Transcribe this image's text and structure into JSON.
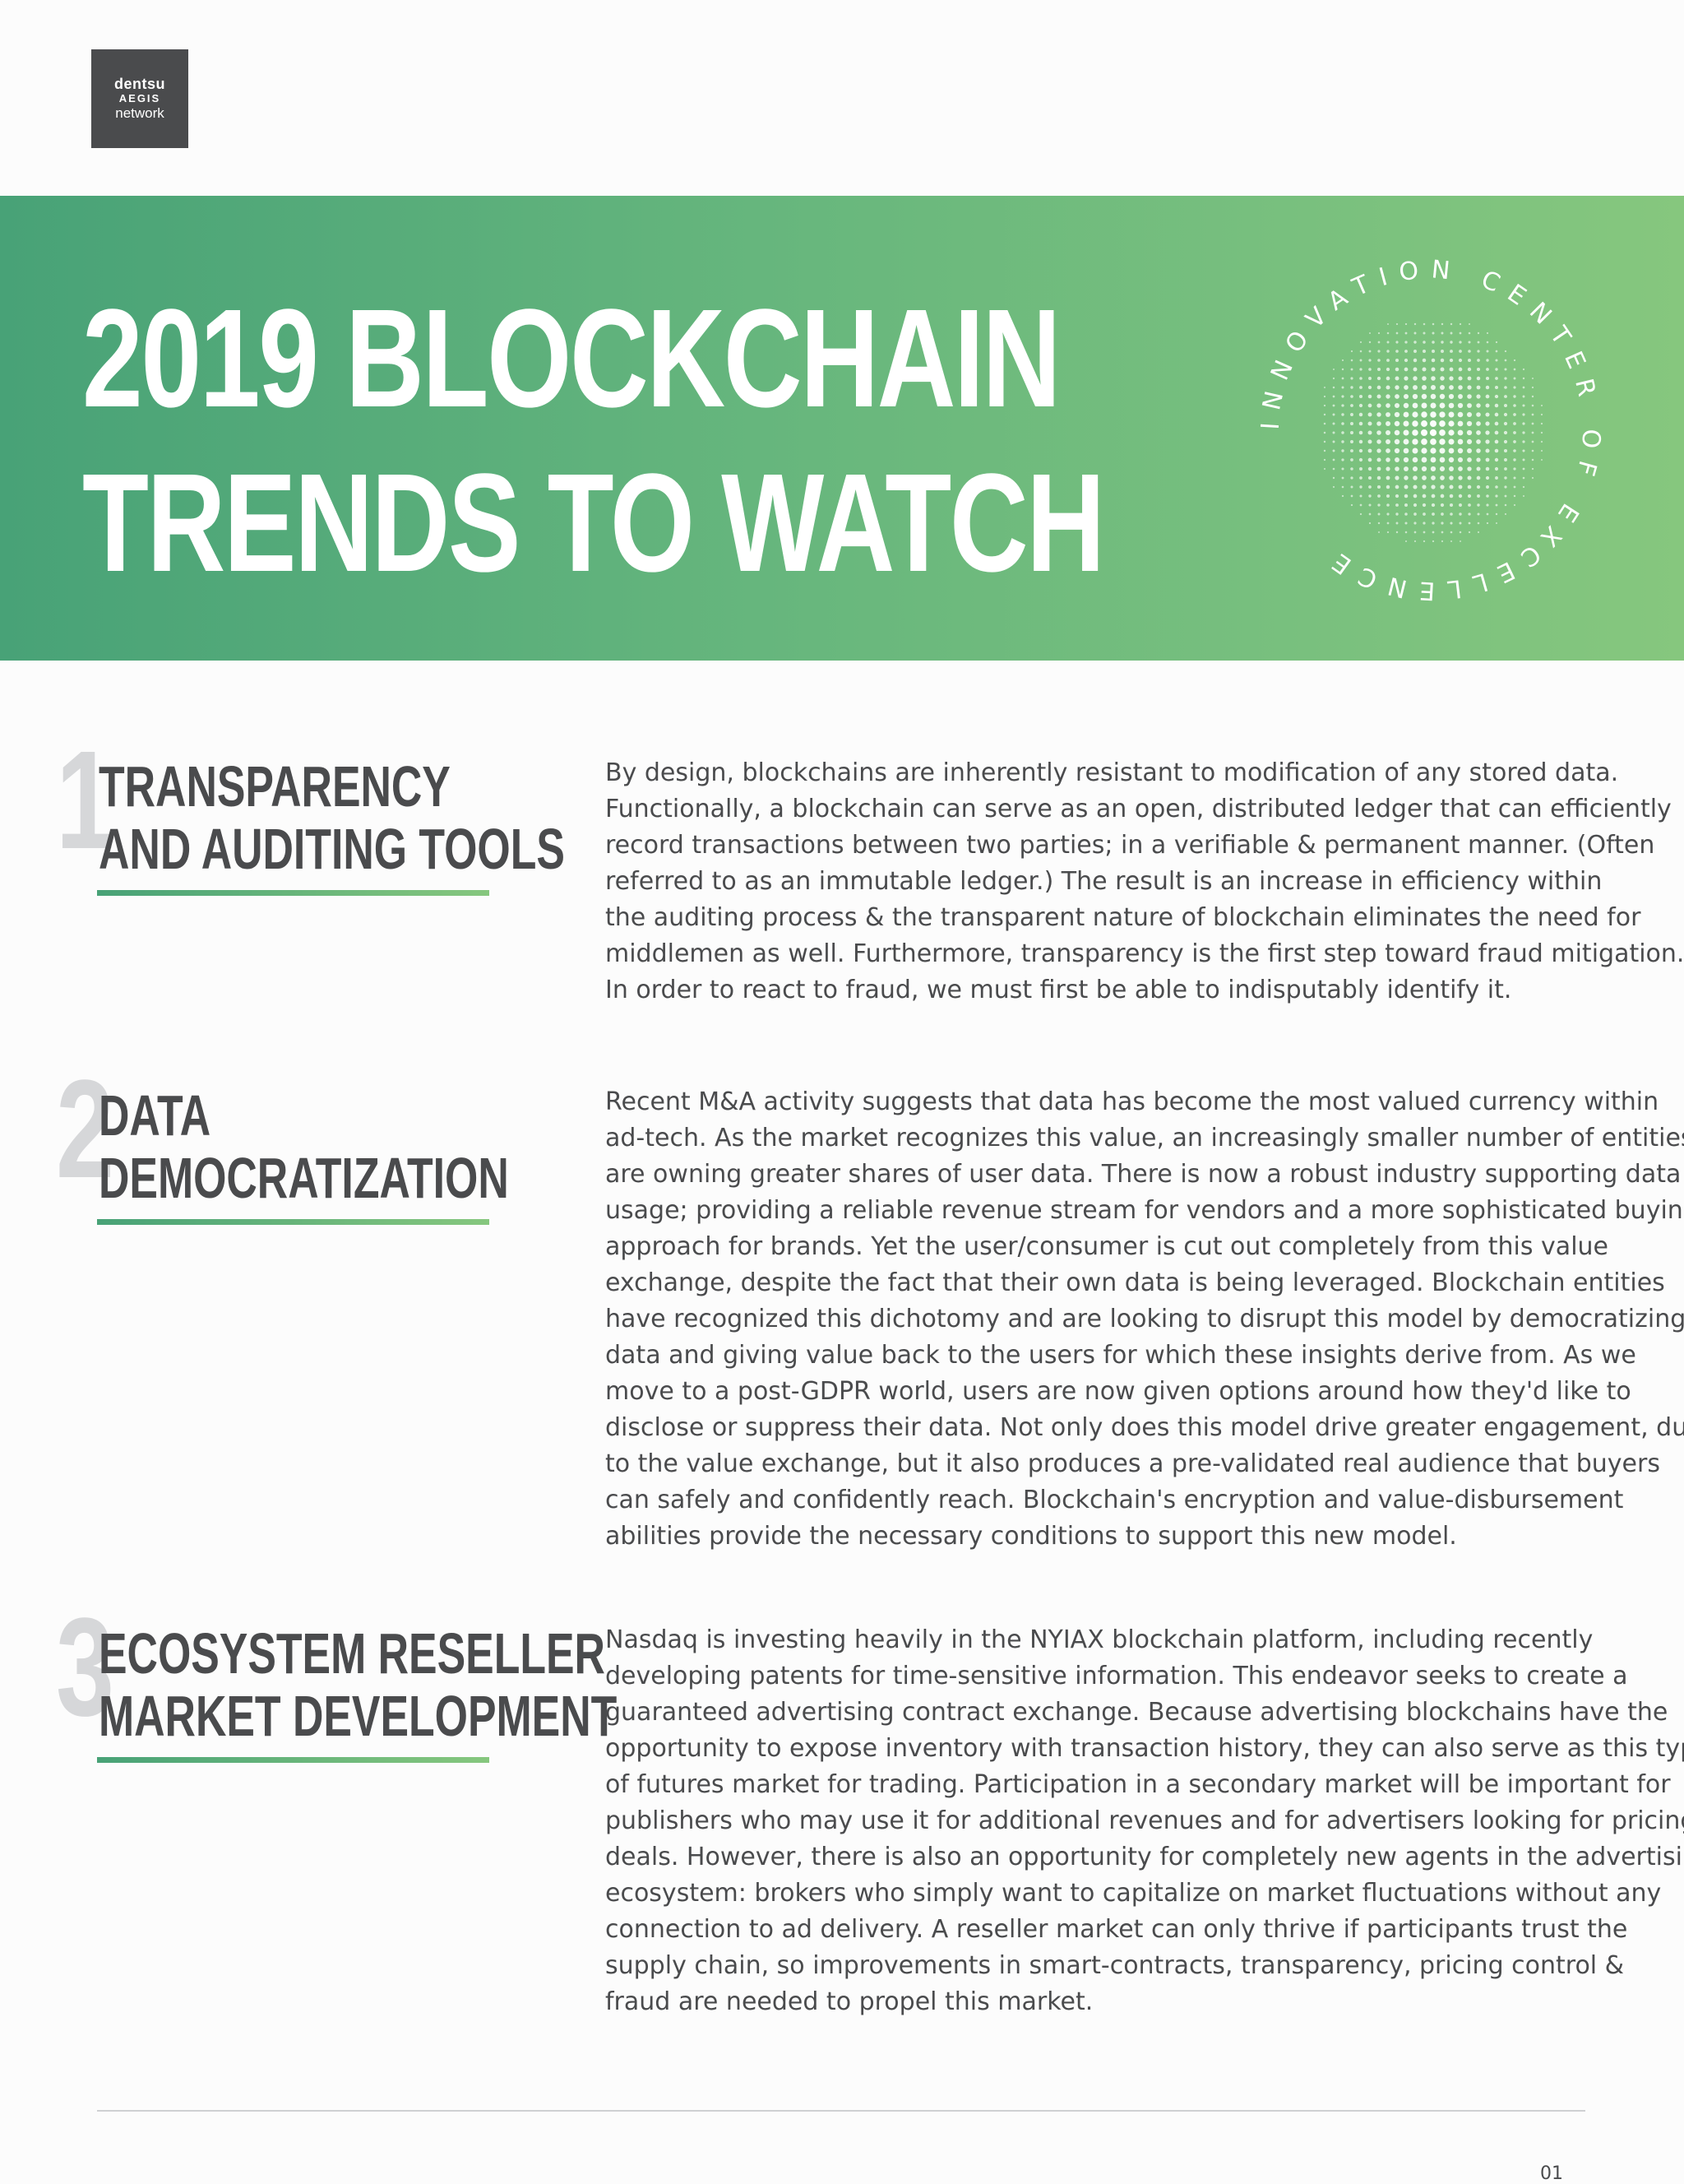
{
  "logo": {
    "line1": "dentsu",
    "line2": "AEGIS",
    "line3": "network"
  },
  "header": {
    "title_lines": [
      "2019 BLOCKCHAIN",
      "TRENDS TO WATCH"
    ],
    "seal_text": "INNOVATION CENTER OF EXCELLENCE"
  },
  "trends": [
    {
      "number": "1",
      "title_lines": [
        "TRANSPARENCY",
        "AND AUDITING TOOLS"
      ],
      "body_lines": [
        "By design, blockchains are inherently resistant to modification of any stored data.",
        "Functionally, a blockchain can serve as an open, distributed ledger that can efficiently",
        "record transactions between two parties; in a verifiable & permanent manner. (Often",
        "referred to as an immutable ledger.) The result is an increase in efficiency within",
        "the auditing process & the transparent nature of blockchain eliminates the need for",
        "middlemen as well.  Furthermore, transparency is the first step toward fraud mitigation.",
        "In order to react to fraud, we must first be able to indisputably identify it."
      ]
    },
    {
      "number": "2",
      "title_lines": [
        "DATA",
        "DEMOCRATIZATION"
      ],
      "body_lines": [
        "Recent M&A activity suggests that data has become the most valued currency within",
        "ad-tech. As the market recognizes this value, an increasingly smaller number of entities",
        "are owning greater shares of user data. There is now a robust industry supporting data",
        "usage; providing a reliable revenue stream for vendors and a more sophisticated buying",
        "approach for brands. Yet the user/consumer is cut out completely from this value",
        "exchange, despite the fact that their own data is being leveraged. Blockchain entities",
        "have recognized this dichotomy and are looking to disrupt this model by democratizing",
        "data and giving value back to the users for which these insights derive from. As we",
        "move to a post-GDPR world, users are now given options around how they'd like to",
        "disclose or suppress their data. Not only does this model drive greater engagement, due",
        "to the value exchange, but it also produces a pre-validated real audience that buyers",
        "can safely and confidently reach. Blockchain's encryption and value-disbursement",
        "abilities provide the necessary conditions to support this new model."
      ]
    },
    {
      "number": "3",
      "title_lines": [
        "ECOSYSTEM RESELLER",
        "MARKET DEVELOPMENT"
      ],
      "body_lines": [
        "Nasdaq is investing heavily in the NYIAX blockchain platform, including recently",
        "developing patents for time-sensitive information. This endeavor seeks to create a",
        "guaranteed advertising contract exchange. Because advertising blockchains have the",
        "opportunity to expose inventory with transaction history, they can also serve as this type",
        "of futures market for trading. Participation in a secondary market will be important for",
        "publishers who may use it for additional revenues and for advertisers looking for pricing",
        "deals. However, there is also an opportunity for completely new agents in the advertising",
        "ecosystem: brokers who simply want to capitalize on market fluctuations without any",
        "connection to ad delivery. A reseller market can only thrive if participants trust the",
        "supply chain, so improvements in smart-contracts, transparency, pricing control &",
        "fraud are needed to propel this market."
      ]
    }
  ],
  "footer": {
    "page_number": "01"
  }
}
